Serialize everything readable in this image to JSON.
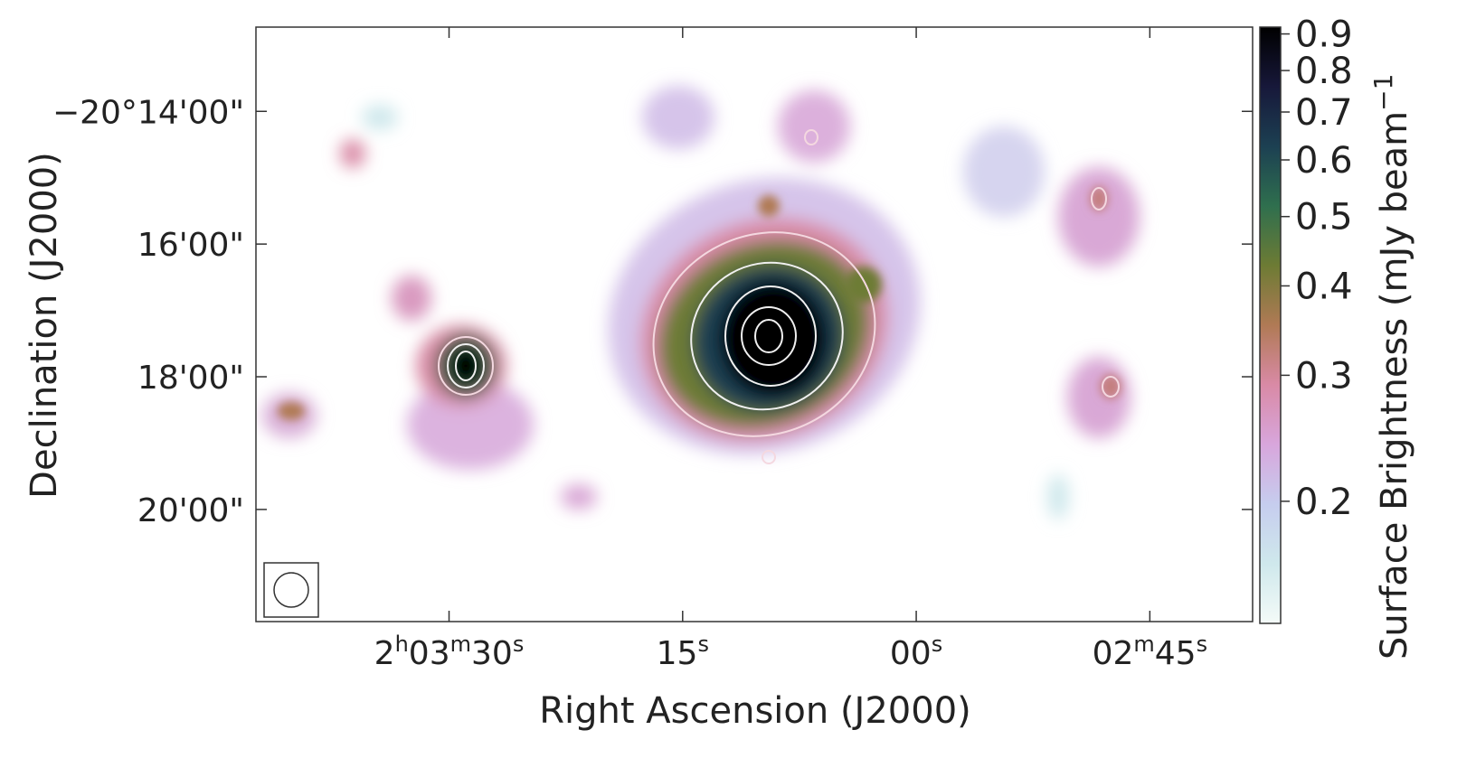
{
  "chart_data": {
    "type": "image",
    "xlabel": "Right Ascension (J2000)",
    "ylabel": "Declination (J2000)",
    "xlim": [
      7422.4,
      7358.4
    ],
    "xticks": [
      {
        "value": 7410,
        "label": "2h03m30s"
      },
      {
        "value": 7395,
        "label": "15s"
      },
      {
        "value": 7380,
        "label": "00s"
      },
      {
        "value": 7365,
        "label": "02m45s"
      }
    ],
    "ylim": [
      -1221.69,
      -1212.73
    ],
    "yticks": [
      {
        "value": -1214,
        "label": "−20°14'00\""
      },
      {
        "value": -1216,
        "label": "16'00\""
      },
      {
        "value": -1218,
        "label": "18'00\""
      },
      {
        "value": -1220,
        "label": "20'00\""
      }
    ],
    "colorbar_label": "Surface Brightness (mJy beam−1",
    "clim": [
      0.135,
      0.92
    ],
    "colorbar_scale": "log",
    "colorbar_ticks": [
      0.2,
      0.3,
      0.4,
      0.5,
      0.6,
      0.7,
      0.8,
      0.9
    ],
    "colormap": [
      "#f4fbf8",
      "#cfe8ec",
      "#c6cdee",
      "#d8a6dc",
      "#d98aa6",
      "#b07a55",
      "#6d7b34",
      "#2f6f4e",
      "#1c4052",
      "#17183a",
      "#000000"
    ]
  }
}
